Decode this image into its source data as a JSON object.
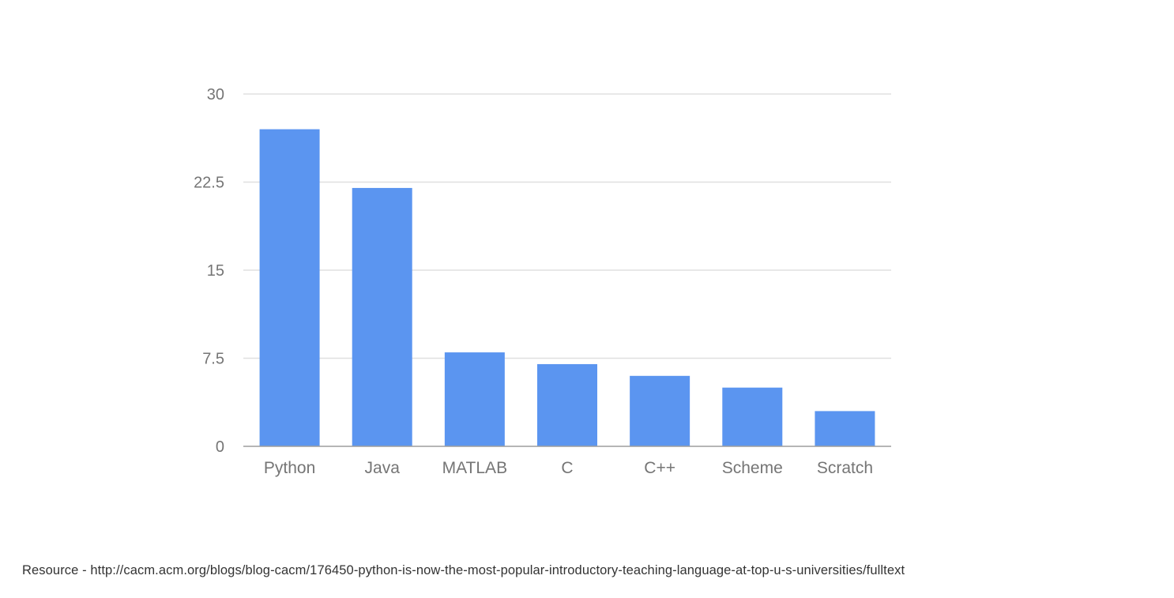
{
  "chart_data": {
    "type": "bar",
    "categories": [
      "Python",
      "Java",
      "MATLAB",
      "C",
      "C++",
      "Scheme",
      "Scratch"
    ],
    "values": [
      27,
      22,
      8,
      7,
      6,
      5,
      3
    ],
    "yticks": [
      "0",
      "7.5",
      "15",
      "22.5",
      "30"
    ],
    "ylim": [
      0,
      30
    ],
    "grid": true,
    "title": "",
    "xlabel": "",
    "ylabel": "",
    "bar_color": "#5b95f0",
    "grid_color": "#e0e0e0",
    "axis_color": "#9e9e9e"
  },
  "footer": {
    "source_text": "Resource - http://cacm.acm.org/blogs/blog-cacm/176450-python-is-now-the-most-popular-introductory-teaching-language-at-top-u-s-universities/fulltext"
  }
}
